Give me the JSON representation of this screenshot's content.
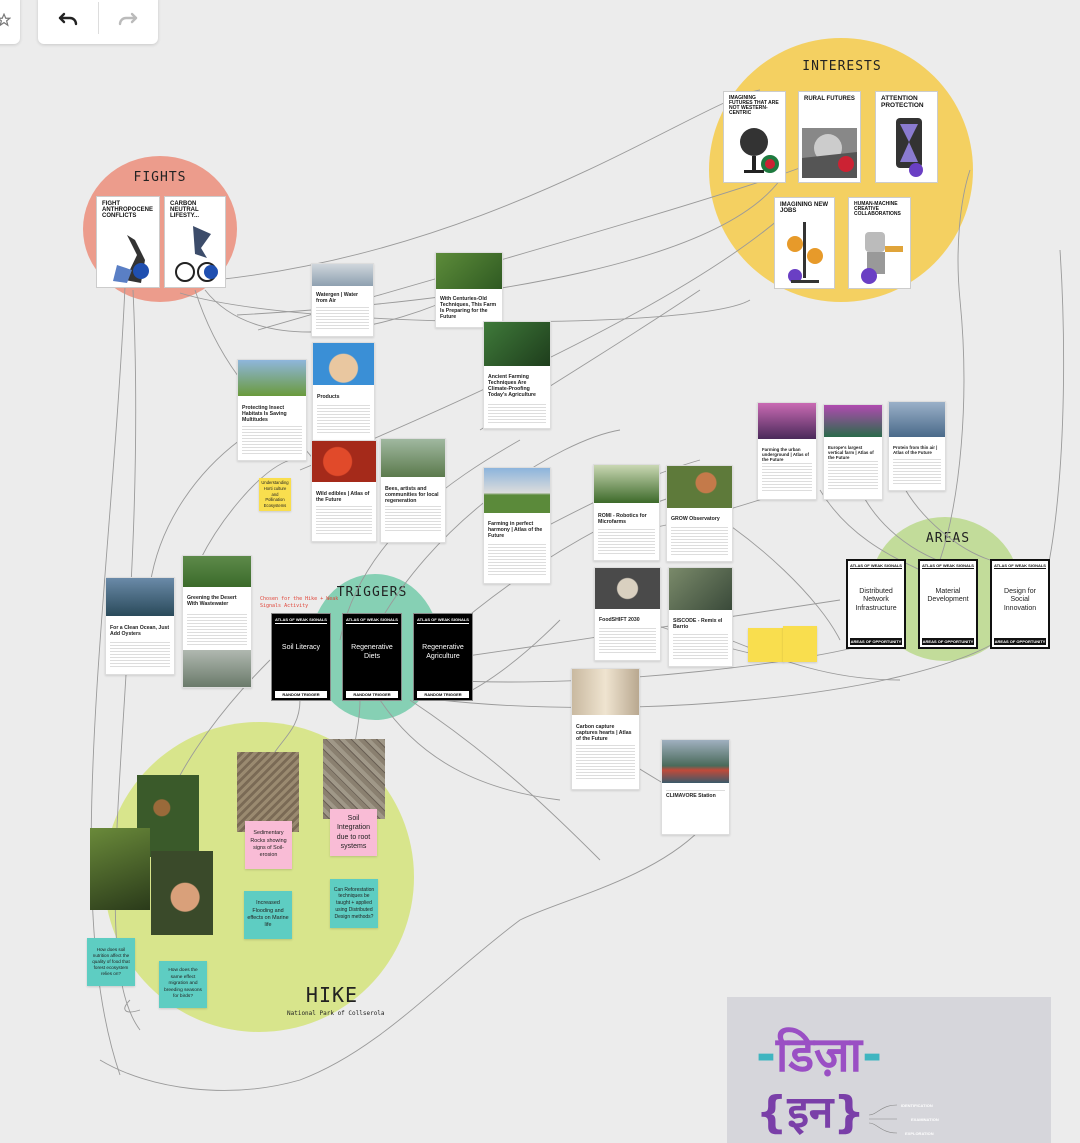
{
  "toolbar": {
    "undo_label": "Undo",
    "redo_label": "Redo"
  },
  "colors": {
    "fights": "#ec9c8c",
    "interests": "#f4d061",
    "triggers": "#86d0b4",
    "areas": "#c2dc9a",
    "hike": "#d8e58c",
    "sticky_pink": "#f9bcd6",
    "sticky_teal": "#5ecdc2",
    "sticky_yellow": "#f9de4e"
  },
  "clusters": {
    "fights": "FIGHTS",
    "interests": "INTERESTS",
    "triggers": "TRIGGERS",
    "areas": "AREAS",
    "hike": "HIKE",
    "hike_sub": "National Park of Collserola"
  },
  "fights_posters": [
    "FIGHT ANTHROPOCENE CONFLICTS",
    "CARBON NEUTRAL LIFESTY..."
  ],
  "interest_posters": [
    "IMAGINING FUTURES THAT ARE NOT WESTERN-CENTRIC",
    "RURAL FUTURES",
    "ATTENTION PROTECTION",
    "IMAGINING NEW JOBS",
    "HUMAN-MACHINE CREATIVE COLLABORATIONS"
  ],
  "trigger_cards": {
    "header": "ATLAS OF WEAK SIGNALS",
    "footer": "RANDOM TRIGGER",
    "items": [
      "Soil Literacy",
      "Regenerative Diets",
      "Regenerative Agriculture"
    ]
  },
  "area_cards": {
    "header": "ATLAS OF WEAK SIGNALS",
    "footer": "AREAS OF OPPORTUNITY",
    "items": [
      "Distributed Network Infrastructure",
      "Material Development",
      "Design for Social Innovation"
    ]
  },
  "chosen_note": "Chosen for the Hike + Weak Signals Activity",
  "article_cards": [
    {
      "title": "Watergen | Water from Air"
    },
    {
      "title": "With Centuries-Old Techniques, This Farm Is Preparing for the Future"
    },
    {
      "title": "Products"
    },
    {
      "title": "Ancient Farming Techniques Are Climate-Proofing Today's Agriculture"
    },
    {
      "title": "Protecting Insect Habitats Is Saving Multitudes"
    },
    {
      "title": "Wild edibles | Atlas of the Future"
    },
    {
      "title": "Bees, artists and communities for local regeneration"
    },
    {
      "title": "Farming in perfect harmony | Atlas of the Future"
    },
    {
      "title": "ROMI - Robotics for Microfarms"
    },
    {
      "title": "GROW Observatory"
    },
    {
      "title": "Farming the urban underground | Atlas of the Future"
    },
    {
      "title": "Europe's largest vertical farm | Atlas of the Future"
    },
    {
      "title": "Protein from thin air | Atlas of the Future"
    },
    {
      "title": "Greening the Desert With Wastewater"
    },
    {
      "title": "For a Clean Ocean, Just Add Oysters"
    },
    {
      "title": "FoodSHIFT 2030"
    },
    {
      "title": "SISCODE - Remix el Barrio"
    },
    {
      "title": "Carbon capture captures hearts | Atlas of the Future"
    },
    {
      "title": "CLIMAVORE Station"
    }
  ],
  "stickies": [
    "Understanding Horti culture and Pollination Ecosystems",
    "Sedimentary Rocks showing signs of Soil-erosion",
    "Soil Integration due to root systems",
    "Increased Flooding and effects on Marine life",
    "Can Reforestation techniques be taught + applied using Distributed Design methods?",
    "How does soil nutrition affect the quality of food that forest ecosystem relies on?",
    "How does the same effect migration and breeding seasons for birds?"
  ],
  "logo": {
    "line1": "डिज़ा",
    "line2": "{इन}"
  },
  "logo_labels": [
    "IDENTIFICATION",
    "EXAMINATION",
    "EXPLORATION"
  ]
}
